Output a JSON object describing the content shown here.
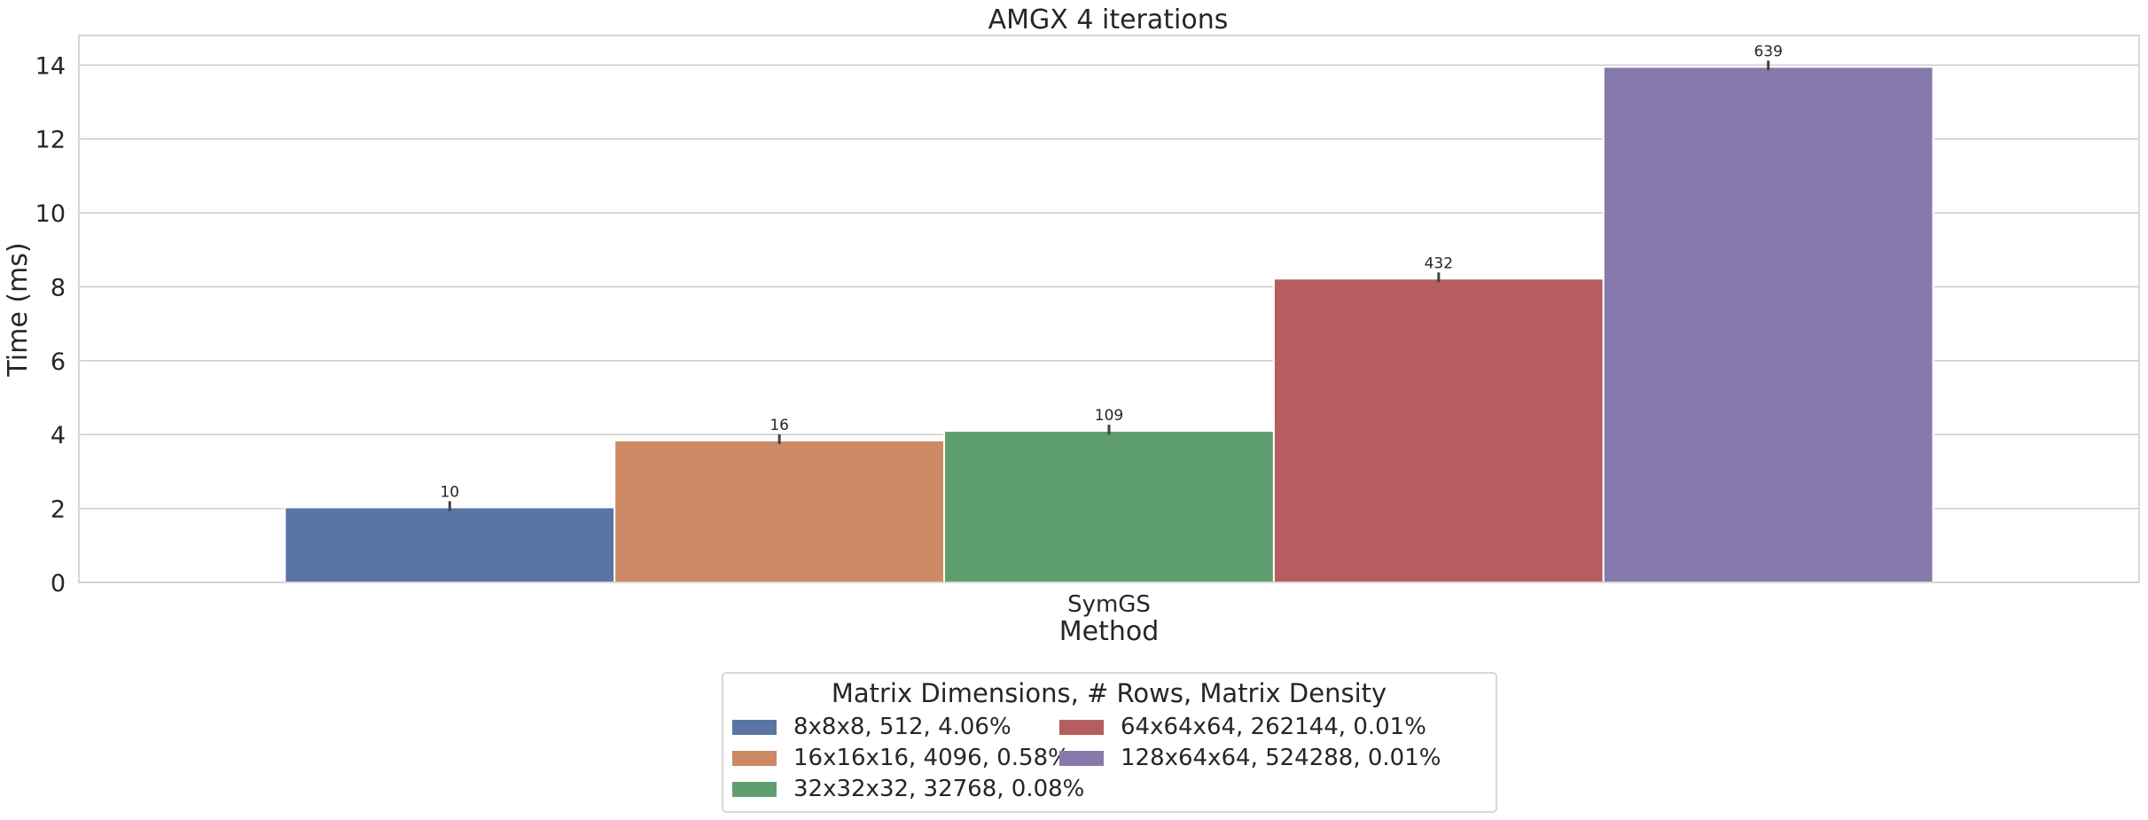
{
  "chart_data": {
    "type": "bar",
    "title": "AMGX 4 iterations",
    "xlabel": "Method",
    "ylabel": "Time (ms)",
    "categories": [
      "SymGS"
    ],
    "ylim": [
      0,
      14.8
    ],
    "yticks": [
      0,
      2,
      4,
      6,
      8,
      10,
      12,
      14
    ],
    "grid": true,
    "legend_title": "Matrix Dimensions, # Rows, Matrix Density",
    "legend_position": "bottom-center",
    "series": [
      {
        "name": "8x8x8, 512, 4.06%",
        "values": [
          2.03
        ],
        "label": "10",
        "color": "#5875a4"
      },
      {
        "name": "16x16x16, 4096, 0.58%",
        "values": [
          3.84
        ],
        "label": "16",
        "color": "#cc8963"
      },
      {
        "name": "32x32x32, 32768, 0.08%",
        "values": [
          4.1
        ],
        "label": "109",
        "color": "#5f9e6e"
      },
      {
        "name": "64x64x64, 262144, 0.01%",
        "values": [
          8.22
        ],
        "label": "432",
        "color": "#b55d60"
      },
      {
        "name": "128x64x64, 524288, 0.01%",
        "values": [
          13.95
        ],
        "label": "639",
        "color": "#857aab"
      }
    ]
  }
}
